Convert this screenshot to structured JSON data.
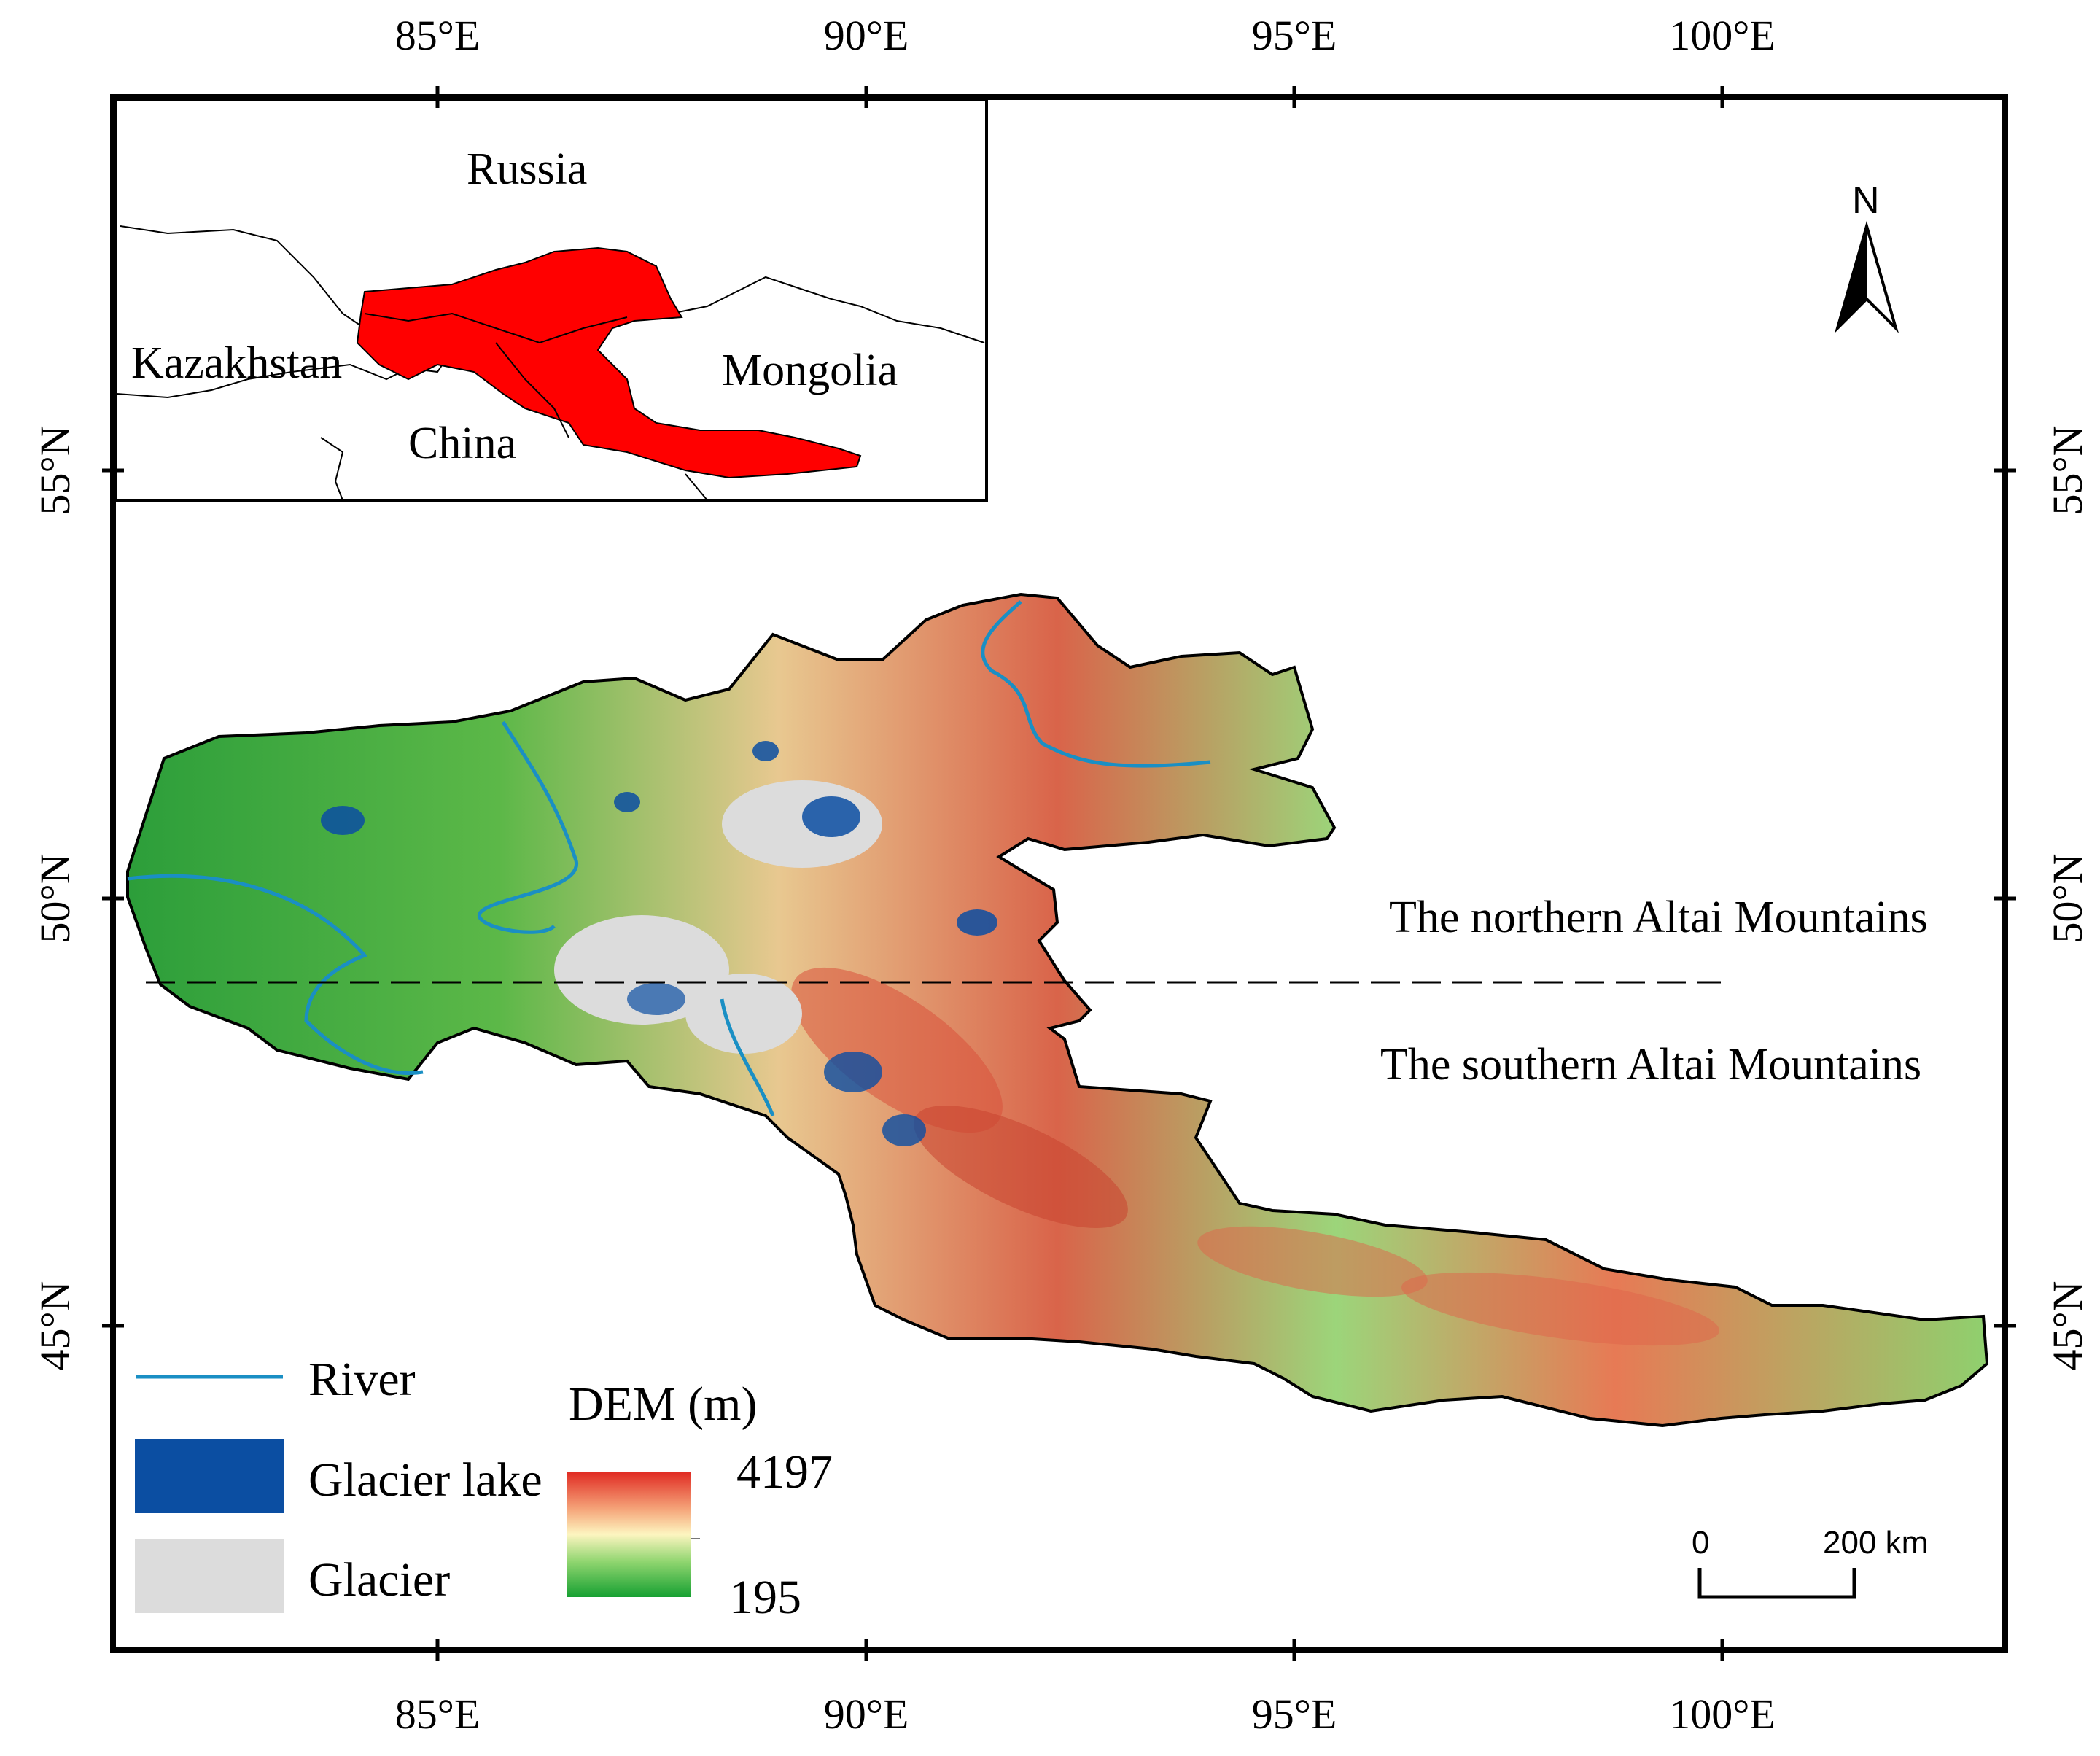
{
  "map": {
    "longitude_ticks": [
      "85°E",
      "90°E",
      "95°E",
      "100°E"
    ],
    "latitude_ticks": [
      "55°N",
      "50°N",
      "45°N"
    ],
    "region_labels": {
      "north": "The northern Altai Mountains",
      "south": "The southern Altai Mountains"
    },
    "north_arrow": "N",
    "scale_bar": {
      "start": "0",
      "end": "200 km"
    }
  },
  "inset": {
    "countries": [
      "Russia",
      "Kazakhstan",
      "Mongolia",
      "China"
    ],
    "highlight_color": "#ff0000"
  },
  "legend": {
    "river": {
      "label": "River",
      "color": "#1a8fc4"
    },
    "glacier_lake": {
      "label": "Glacier lake",
      "color": "#0b4ea2"
    },
    "glacier": {
      "label": "Glacier",
      "color": "#dcdcdc"
    },
    "dem": {
      "title": "DEM (m)",
      "max": "4197",
      "min": "195",
      "colors": [
        "#e8332b",
        "#f5a57a",
        "#fdf5c0",
        "#a8e08a",
        "#22a338"
      ]
    }
  }
}
